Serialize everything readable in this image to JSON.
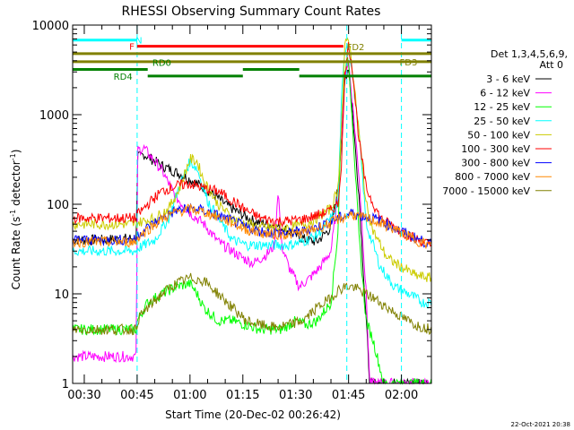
{
  "chart_data": {
    "type": "line",
    "title": "RHESSI Observing Summary Count Rates",
    "xlabel": "Start Time (20-Dec-02 00:26:42)",
    "ylabel_prefix": "Count Rate (s",
    "ylabel_sup": "-1",
    "ylabel_mid": " detector",
    "ylabel_sup2": "-1",
    "ylabel_suffix": ")",
    "yscale": "log",
    "ylim": [
      1,
      10000
    ],
    "xlim_minutes": [
      26.7,
      128.5
    ],
    "x_ticks": [
      {
        "m": 30,
        "label": "00:30"
      },
      {
        "m": 45,
        "label": "00:45"
      },
      {
        "m": 60,
        "label": "01:00"
      },
      {
        "m": 75,
        "label": "01:15"
      },
      {
        "m": 90,
        "label": "01:30"
      },
      {
        "m": 105,
        "label": "01:45"
      },
      {
        "m": 120,
        "label": "02:00"
      }
    ],
    "y_ticks": [
      {
        "v": 1,
        "label": "1"
      },
      {
        "v": 10,
        "label": "10"
      },
      {
        "v": 100,
        "label": "100"
      },
      {
        "v": 1000,
        "label": "1000"
      },
      {
        "v": 10000,
        "label": "10000"
      }
    ],
    "legend_header": [
      "Det 1,3,4,5,6,9,",
      "Att 0"
    ],
    "legend_position": "right",
    "series": [
      {
        "name": "3 - 6 keV",
        "color": "#000000",
        "points": [
          [
            26.7,
            40
          ],
          [
            30,
            40
          ],
          [
            35,
            40
          ],
          [
            40,
            41
          ],
          [
            44.9,
            42
          ],
          [
            45,
            330
          ],
          [
            47,
            360
          ],
          [
            52,
            270
          ],
          [
            58,
            210
          ],
          [
            62,
            170
          ],
          [
            66,
            135
          ],
          [
            70,
            100
          ],
          [
            74,
            80
          ],
          [
            78,
            65
          ],
          [
            82,
            60
          ],
          [
            86,
            55
          ],
          [
            90,
            45
          ],
          [
            93,
            40
          ],
          [
            96,
            38
          ],
          [
            100,
            55
          ],
          [
            102,
            150
          ],
          [
            103,
            600
          ],
          [
            104,
            2500
          ],
          [
            105,
            3500
          ],
          [
            106,
            1200
          ],
          [
            108,
            120
          ],
          [
            110,
            5
          ],
          [
            111,
            1
          ],
          [
            128.5,
            1
          ]
        ]
      },
      {
        "name": "6 - 12 keV",
        "color": "#ff00ff",
        "points": [
          [
            26.7,
            2
          ],
          [
            30,
            2
          ],
          [
            35,
            2
          ],
          [
            40,
            2
          ],
          [
            44.9,
            2
          ],
          [
            45,
            400
          ],
          [
            47,
            420
          ],
          [
            52,
            240
          ],
          [
            56,
            120
          ],
          [
            60,
            80
          ],
          [
            64,
            60
          ],
          [
            68,
            38
          ],
          [
            72,
            30
          ],
          [
            75,
            25
          ],
          [
            78,
            22
          ],
          [
            82,
            28
          ],
          [
            84,
            35
          ],
          [
            85,
            150
          ],
          [
            86,
            35
          ],
          [
            88,
            20
          ],
          [
            91,
            12
          ],
          [
            94,
            15
          ],
          [
            97,
            20
          ],
          [
            100,
            30
          ],
          [
            102,
            120
          ],
          [
            103,
            700
          ],
          [
            104,
            3000
          ],
          [
            105,
            4000
          ],
          [
            106,
            1500
          ],
          [
            108,
            200
          ],
          [
            110,
            10
          ],
          [
            111,
            1
          ],
          [
            128.5,
            1
          ]
        ]
      },
      {
        "name": "12 - 25 keV",
        "color": "#00ff00",
        "points": [
          [
            26.7,
            4
          ],
          [
            30,
            4
          ],
          [
            35,
            4
          ],
          [
            40,
            4
          ],
          [
            44.9,
            4
          ],
          [
            45,
            5
          ],
          [
            48,
            8
          ],
          [
            52,
            10
          ],
          [
            56,
            12
          ],
          [
            60,
            13
          ],
          [
            62,
            10
          ],
          [
            64,
            7
          ],
          [
            68,
            5
          ],
          [
            72,
            5
          ],
          [
            76,
            4.5
          ],
          [
            80,
            4
          ],
          [
            86,
            4
          ],
          [
            90,
            5
          ],
          [
            93,
            4.5
          ],
          [
            96,
            5
          ],
          [
            100,
            8
          ],
          [
            102,
            50
          ],
          [
            103,
            1000
          ],
          [
            104,
            3500
          ],
          [
            105,
            4000
          ],
          [
            106,
            1000
          ],
          [
            108,
            40
          ],
          [
            110,
            5
          ],
          [
            112,
            3
          ],
          [
            115,
            1
          ],
          [
            128.5,
            1
          ]
        ]
      },
      {
        "name": "25 - 50 keV",
        "color": "#00ffff",
        "points": [
          [
            26.7,
            30
          ],
          [
            30,
            30
          ],
          [
            35,
            30
          ],
          [
            40,
            30
          ],
          [
            44.9,
            30
          ],
          [
            45,
            32
          ],
          [
            50,
            40
          ],
          [
            54,
            70
          ],
          [
            57,
            160
          ],
          [
            60,
            300
          ],
          [
            62,
            250
          ],
          [
            65,
            110
          ],
          [
            68,
            70
          ],
          [
            72,
            40
          ],
          [
            76,
            35
          ],
          [
            80,
            35
          ],
          [
            84,
            35
          ],
          [
            88,
            35
          ],
          [
            92,
            38
          ],
          [
            96,
            45
          ],
          [
            100,
            70
          ],
          [
            102,
            100
          ],
          [
            103,
            1500
          ],
          [
            104,
            5500
          ],
          [
            105,
            6500
          ],
          [
            106,
            3000
          ],
          [
            108,
            600
          ],
          [
            110,
            60
          ],
          [
            114,
            20
          ],
          [
            118,
            12
          ],
          [
            122,
            10
          ],
          [
            126,
            8
          ],
          [
            128.5,
            8
          ]
        ]
      },
      {
        "name": "50 - 100 keV",
        "color": "#cccc00",
        "points": [
          [
            26.7,
            60
          ],
          [
            30,
            60
          ],
          [
            35,
            60
          ],
          [
            40,
            60
          ],
          [
            44.9,
            60
          ],
          [
            45,
            62
          ],
          [
            50,
            70
          ],
          [
            54,
            90
          ],
          [
            57,
            150
          ],
          [
            60,
            320
          ],
          [
            62,
            300
          ],
          [
            64,
            180
          ],
          [
            68,
            100
          ],
          [
            72,
            70
          ],
          [
            76,
            60
          ],
          [
            80,
            55
          ],
          [
            84,
            55
          ],
          [
            88,
            55
          ],
          [
            92,
            58
          ],
          [
            96,
            70
          ],
          [
            100,
            90
          ],
          [
            102,
            150
          ],
          [
            103,
            800
          ],
          [
            104,
            6000
          ],
          [
            105,
            7500
          ],
          [
            106,
            3500
          ],
          [
            108,
            600
          ],
          [
            110,
            100
          ],
          [
            112,
            50
          ],
          [
            116,
            25
          ],
          [
            120,
            20
          ],
          [
            124,
            16
          ],
          [
            128.5,
            15
          ]
        ]
      },
      {
        "name": "100 - 300 keV",
        "color": "#ff0000",
        "points": [
          [
            26.7,
            70
          ],
          [
            30,
            70
          ],
          [
            35,
            70
          ],
          [
            40,
            70
          ],
          [
            44.9,
            70
          ],
          [
            45,
            75
          ],
          [
            48,
            100
          ],
          [
            52,
            140
          ],
          [
            56,
            160
          ],
          [
            60,
            170
          ],
          [
            64,
            150
          ],
          [
            68,
            140
          ],
          [
            72,
            110
          ],
          [
            76,
            85
          ],
          [
            80,
            70
          ],
          [
            84,
            65
          ],
          [
            88,
            65
          ],
          [
            92,
            68
          ],
          [
            96,
            75
          ],
          [
            100,
            85
          ],
          [
            102,
            100
          ],
          [
            103,
            300
          ],
          [
            104,
            3000
          ],
          [
            105,
            6000
          ],
          [
            106,
            3500
          ],
          [
            108,
            500
          ],
          [
            110,
            150
          ],
          [
            114,
            70
          ],
          [
            118,
            55
          ],
          [
            122,
            45
          ],
          [
            126,
            38
          ],
          [
            128.5,
            35
          ]
        ]
      },
      {
        "name": "300 - 800 keV",
        "color": "#0000ff",
        "points": [
          [
            26.7,
            40
          ],
          [
            30,
            40
          ],
          [
            35,
            40
          ],
          [
            40,
            40
          ],
          [
            44.9,
            40
          ],
          [
            45,
            45
          ],
          [
            48,
            55
          ],
          [
            52,
            70
          ],
          [
            56,
            85
          ],
          [
            60,
            90
          ],
          [
            64,
            85
          ],
          [
            68,
            75
          ],
          [
            72,
            65
          ],
          [
            76,
            55
          ],
          [
            80,
            50
          ],
          [
            84,
            48
          ],
          [
            88,
            48
          ],
          [
            92,
            50
          ],
          [
            96,
            55
          ],
          [
            100,
            65
          ],
          [
            102,
            70
          ],
          [
            104,
            75
          ],
          [
            106,
            80
          ],
          [
            108,
            75
          ],
          [
            112,
            70
          ],
          [
            116,
            60
          ],
          [
            120,
            50
          ],
          [
            124,
            42
          ],
          [
            128.5,
            35
          ]
        ]
      },
      {
        "name": "800 - 7000 keV",
        "color": "#ff8800",
        "points": [
          [
            26.7,
            38
          ],
          [
            30,
            38
          ],
          [
            35,
            38
          ],
          [
            40,
            38
          ],
          [
            44.9,
            38
          ],
          [
            45,
            42
          ],
          [
            48,
            52
          ],
          [
            52,
            68
          ],
          [
            56,
            82
          ],
          [
            60,
            88
          ],
          [
            64,
            82
          ],
          [
            68,
            72
          ],
          [
            72,
            62
          ],
          [
            76,
            52
          ],
          [
            80,
            48
          ],
          [
            84,
            46
          ],
          [
            88,
            46
          ],
          [
            92,
            48
          ],
          [
            96,
            54
          ],
          [
            100,
            62
          ],
          [
            102,
            68
          ],
          [
            104,
            72
          ],
          [
            106,
            78
          ],
          [
            108,
            72
          ],
          [
            112,
            66
          ],
          [
            116,
            57
          ],
          [
            120,
            48
          ],
          [
            124,
            40
          ],
          [
            128.5,
            34
          ]
        ]
      },
      {
        "name": "7000 - 15000 keV",
        "color": "#808000",
        "points": [
          [
            26.7,
            4
          ],
          [
            30,
            4
          ],
          [
            35,
            4
          ],
          [
            40,
            4
          ],
          [
            44.9,
            4
          ],
          [
            45,
            5
          ],
          [
            48,
            7
          ],
          [
            52,
            10
          ],
          [
            56,
            13
          ],
          [
            60,
            15
          ],
          [
            64,
            14
          ],
          [
            68,
            10
          ],
          [
            72,
            7
          ],
          [
            76,
            5
          ],
          [
            80,
            4.5
          ],
          [
            84,
            4.2
          ],
          [
            88,
            4.5
          ],
          [
            92,
            5
          ],
          [
            96,
            7
          ],
          [
            100,
            9
          ],
          [
            102,
            11
          ],
          [
            104,
            12
          ],
          [
            106,
            12
          ],
          [
            108,
            11
          ],
          [
            112,
            9
          ],
          [
            116,
            7
          ],
          [
            120,
            5.5
          ],
          [
            124,
            4.5
          ],
          [
            128.5,
            4
          ]
        ]
      }
    ],
    "annotations": {
      "flags": [
        {
          "label": "N",
          "color": "#00ffff",
          "label_m": 45.5,
          "y": 6800,
          "segments": [
            [
              26.7,
              45
            ],
            [
              120,
              128.5
            ]
          ]
        },
        {
          "label": "F",
          "color": "#ff0000",
          "label_m": 43.5,
          "y": 5800,
          "segments": [
            [
              45,
              103.5
            ]
          ]
        },
        {
          "label": "FD2",
          "color": "#808000",
          "label_m": 107,
          "y": 4800,
          "segments": [
            [
              26.7,
              128.5
            ]
          ]
        },
        {
          "label": "FD3",
          "color": "#808000",
          "label_m": 122,
          "y": 3900,
          "segments": [
            [
              26.7,
              128.5
            ]
          ]
        },
        {
          "label": "RD0",
          "color": "#008000",
          "label_m": 52,
          "y": 3200,
          "segments": [
            [
              26.7,
              48
            ],
            [
              75,
              91
            ]
          ]
        },
        {
          "label": "RD4",
          "color": "#008000",
          "label_m": 41,
          "y": 2700,
          "segments": [
            [
              48,
              75
            ],
            [
              91,
              128.5
            ]
          ]
        }
      ],
      "vlines": [
        {
          "m": 45,
          "color": "#00ffff"
        },
        {
          "m": 104.5,
          "color": "#00ffff"
        },
        {
          "m": 120,
          "color": "#00ffff"
        }
      ]
    },
    "footer_date": "22-Oct-2021 20:38"
  }
}
